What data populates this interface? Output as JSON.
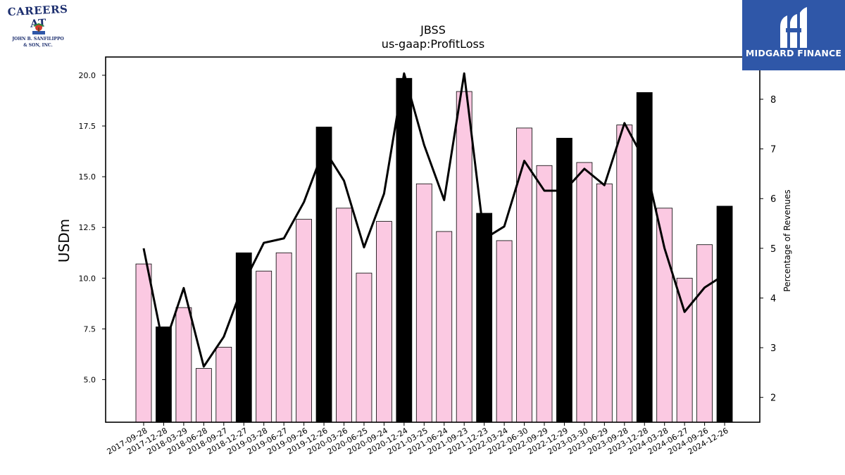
{
  "logos": {
    "left": {
      "line1": "CAREERS AT",
      "line2": "JOHN B. SANFILIPPO",
      "line3": "& SON, INC."
    },
    "right": {
      "text": "MIDGARD FINANCE",
      "color": "#2f57a8"
    }
  },
  "chart_data": {
    "type": "bar",
    "title": "JBSS",
    "subtitle": "us-gaap:ProfitLoss",
    "ylabel": "USDm",
    "y2label": "Percentage of Revenues",
    "ylim": [
      2.9,
      20.9
    ],
    "y2lim": [
      1.5,
      8.85
    ],
    "yticks": [
      "5.0",
      "7.5",
      "10.0",
      "12.5",
      "15.0",
      "17.5",
      "20.0"
    ],
    "y2ticks": [
      "2",
      "3",
      "4",
      "5",
      "6",
      "7",
      "8"
    ],
    "grid": false,
    "colors": {
      "bar_regular": "#fbc9e2",
      "bar_highlight": "#000000",
      "line": "#000000"
    },
    "categories": [
      "2017-09-28",
      "2017-12-28",
      "2018-03-29",
      "2018-06-28",
      "2018-09-27",
      "2018-12-27",
      "2019-03-28",
      "2019-06-27",
      "2019-09-26",
      "2019-12-26",
      "2020-03-26",
      "2020-06-25",
      "2020-09-24",
      "2020-12-24",
      "2021-03-25",
      "2021-06-24",
      "2021-09-23",
      "2021-12-23",
      "2022-03-24",
      "2022-06-30",
      "2022-09-29",
      "2022-12-29",
      "2023-03-30",
      "2023-06-29",
      "2023-09-28",
      "2023-12-28",
      "2024-03-28",
      "2024-06-27",
      "2024-09-26",
      "2024-12-26"
    ],
    "series": [
      {
        "type": "bar",
        "values": [
          10.7,
          7.6,
          8.55,
          5.55,
          6.6,
          11.25,
          10.35,
          11.25,
          12.9,
          17.45,
          13.45,
          10.25,
          12.8,
          19.85,
          14.65,
          12.3,
          19.2,
          13.2,
          11.85,
          17.4,
          15.55,
          16.9,
          15.7,
          14.65,
          17.55,
          19.15,
          13.45,
          10.0,
          11.65,
          13.55
        ],
        "highlight": [
          false,
          true,
          false,
          false,
          false,
          true,
          false,
          false,
          false,
          true,
          false,
          false,
          false,
          true,
          false,
          false,
          false,
          true,
          false,
          false,
          false,
          true,
          false,
          false,
          false,
          true,
          false,
          false,
          false,
          true
        ]
      },
      {
        "type": "line",
        "axis": "right",
        "values": [
          5.0,
          3.0,
          4.2,
          2.62,
          3.22,
          4.3,
          5.11,
          5.2,
          5.93,
          7.0,
          6.36,
          5.02,
          6.1,
          8.52,
          7.08,
          5.97,
          8.52,
          5.19,
          5.44,
          6.76,
          6.16,
          6.16,
          6.6,
          6.27,
          7.52,
          6.77,
          5.0,
          3.72,
          4.21,
          4.47
        ]
      }
    ]
  }
}
